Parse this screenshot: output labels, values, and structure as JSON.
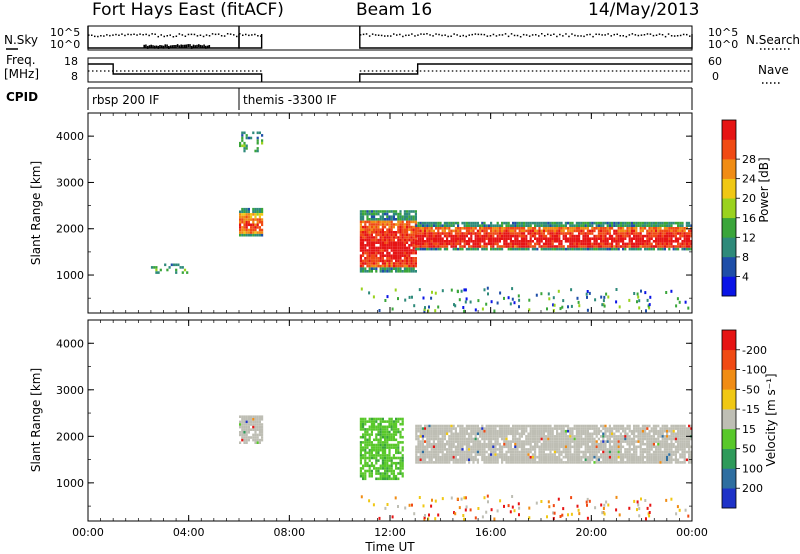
{
  "header": {
    "station": "Fort Hays East (fitACF)",
    "beam": "Beam 16",
    "date": "14/May/2013"
  },
  "side_labels": {
    "nsky": "N.Sky",
    "nsearch": "N.Search",
    "freq_line1": "Freq.",
    "freq_line2": "[MHz]",
    "nave": "Nave",
    "cpid": "CPID"
  },
  "ticks": {
    "nsky_top": "10^5",
    "nsky_bottom": "10^0",
    "nsearch_top": "10^5",
    "nsearch_bottom": "10^0",
    "freq_top": "18",
    "freq_bottom": "8",
    "nave_top": "60",
    "nave_bottom": "0"
  },
  "cpid_segments": [
    {
      "label": "rbsp 200 IF",
      "start_hour": 0,
      "end_hour": 6.0
    },
    {
      "label": "themis -3300 IF",
      "start_hour": 6.0,
      "end_hour": 24
    }
  ],
  "chart_data": [
    {
      "type": "heatmap",
      "title": "",
      "ylabel": "Slant Range [km]",
      "xlabel": "Time UT",
      "x_ticks": [
        "00:00",
        "04:00",
        "08:00",
        "12:00",
        "16:00",
        "20:00",
        "00:00"
      ],
      "xlim_hours": [
        0,
        24
      ],
      "y_ticks": [
        "1000",
        "2000",
        "3000",
        "4000"
      ],
      "ylim": [
        180,
        4500
      ],
      "colorbar": {
        "label": "Power [dB]",
        "ticks": [
          "4",
          "8",
          "12",
          "16",
          "20",
          "24",
          "28"
        ],
        "range": [
          0,
          30
        ],
        "colors": [
          "#0a14e6",
          "#1e4ea8",
          "#2e8a7a",
          "#3aa53a",
          "#9ad21e",
          "#f0c814",
          "#f08c14",
          "#f04a14",
          "#e61414"
        ]
      },
      "echo_regions": [
        {
          "start_hour": 2.5,
          "end_hour": 3.9,
          "range_km": [
            1050,
            1250
          ],
          "power_db": 6
        },
        {
          "start_hour": 6.0,
          "end_hour": 6.9,
          "range_km": [
            1850,
            2450
          ],
          "power_db": 18
        },
        {
          "start_hour": 6.0,
          "end_hour": 6.9,
          "range_km": [
            3700,
            4100
          ],
          "power_db": 6
        },
        {
          "start_hour": 10.8,
          "end_hour": 13.0,
          "range_km": [
            1100,
            2400
          ],
          "power_db": 22
        },
        {
          "start_hour": 13.0,
          "end_hour": 24.0,
          "range_km": [
            1550,
            2150
          ],
          "power_db": 22
        }
      ]
    },
    {
      "type": "heatmap",
      "title": "",
      "ylabel": "Slant Range [km]",
      "xlabel": "Time UT",
      "x_ticks": [
        "00:00",
        "04:00",
        "08:00",
        "12:00",
        "16:00",
        "20:00",
        "00:00"
      ],
      "xlim_hours": [
        0,
        24
      ],
      "y_ticks": [
        "1000",
        "2000",
        "3000",
        "4000"
      ],
      "ylim": [
        180,
        4500
      ],
      "colorbar": {
        "label": "Velocity [m s⁻¹]",
        "ticks": [
          "200",
          "100",
          "50",
          "15",
          "-15",
          "-50",
          "-100",
          "-200"
        ],
        "colors": [
          "#1e32c8",
          "#2e6ea0",
          "#2e9a5a",
          "#58c82a",
          "#bebeb4",
          "#f0c814",
          "#f08c14",
          "#f04a14",
          "#e61414"
        ]
      },
      "echo_regions": [
        {
          "start_hour": 6.0,
          "end_hour": 6.9,
          "range_km": [
            1850,
            2450
          ],
          "velocity": "ground scatter"
        },
        {
          "start_hour": 10.8,
          "end_hour": 12.5,
          "range_km": [
            1100,
            2400
          ],
          "velocity": "15 to 50"
        },
        {
          "start_hour": 13.0,
          "end_hour": 24.0,
          "range_km": [
            1450,
            2250
          ],
          "velocity": "ground scatter"
        }
      ]
    }
  ]
}
